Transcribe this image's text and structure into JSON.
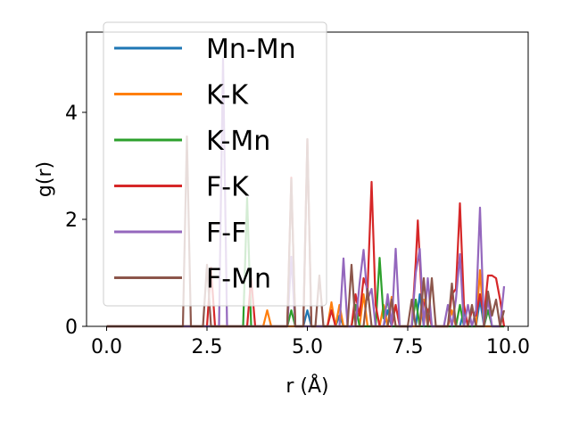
{
  "chart_data": {
    "type": "line",
    "xlabel": "r (Å)",
    "ylabel": "g(r)",
    "xlim": [
      -0.5,
      10.5
    ],
    "ylim": [
      0,
      5.5
    ],
    "xticks": [
      0.0,
      2.5,
      5.0,
      7.5,
      10.0
    ],
    "xtick_labels": [
      "0.0",
      "2.5",
      "5.0",
      "7.5",
      "10.0"
    ],
    "yticks": [
      0,
      2,
      4
    ],
    "ytick_labels": [
      "0",
      "2",
      "4"
    ],
    "grid": false,
    "legend_position": "upper-left",
    "series": [
      {
        "name": "Mn-Mn",
        "color": "#1f77b4",
        "points": [
          [
            0,
            0
          ],
          [
            4.9,
            0
          ],
          [
            5.0,
            0.3
          ],
          [
            5.1,
            0
          ],
          [
            5.7,
            0
          ],
          [
            5.8,
            0.2
          ],
          [
            5.9,
            0
          ],
          [
            6.9,
            0
          ],
          [
            7.0,
            0.3
          ],
          [
            7.1,
            0
          ],
          [
            7.7,
            0
          ],
          [
            7.8,
            0.6
          ],
          [
            7.9,
            0
          ],
          [
            8.8,
            0
          ],
          [
            8.9,
            0.3
          ],
          [
            9.0,
            0
          ],
          [
            9.2,
            0
          ],
          [
            9.3,
            0.5
          ],
          [
            9.4,
            0
          ],
          [
            9.9,
            0
          ]
        ]
      },
      {
        "name": "K-K",
        "color": "#ff7f0e",
        "points": [
          [
            0,
            0
          ],
          [
            3.9,
            0
          ],
          [
            4.0,
            0.3
          ],
          [
            4.1,
            0
          ],
          [
            5.5,
            0
          ],
          [
            5.6,
            0.45
          ],
          [
            5.7,
            0
          ],
          [
            5.8,
            0.4
          ],
          [
            5.9,
            0
          ],
          [
            6.3,
            0
          ],
          [
            6.4,
            0.6
          ],
          [
            6.5,
            0
          ],
          [
            6.8,
            0
          ],
          [
            6.9,
            0.4
          ],
          [
            7.0,
            0
          ],
          [
            7.1,
            0.55
          ],
          [
            7.2,
            0
          ],
          [
            7.8,
            0
          ],
          [
            7.9,
            0.5
          ],
          [
            8.0,
            0
          ],
          [
            8.5,
            0
          ],
          [
            8.6,
            0.3
          ],
          [
            8.7,
            0
          ],
          [
            9.2,
            0
          ],
          [
            9.3,
            1.05
          ],
          [
            9.4,
            0
          ],
          [
            9.9,
            0
          ]
        ]
      },
      {
        "name": "K-Mn",
        "color": "#2ca02c",
        "points": [
          [
            0,
            0
          ],
          [
            3.4,
            0
          ],
          [
            3.5,
            2.4
          ],
          [
            3.6,
            0
          ],
          [
            4.5,
            0
          ],
          [
            4.6,
            0.3
          ],
          [
            4.7,
            0
          ],
          [
            6.1,
            0
          ],
          [
            6.2,
            0.4
          ],
          [
            6.3,
            0
          ],
          [
            6.7,
            0
          ],
          [
            6.8,
            1.28
          ],
          [
            6.9,
            0.15
          ],
          [
            7.0,
            0.5
          ],
          [
            7.1,
            0
          ],
          [
            7.6,
            0
          ],
          [
            7.7,
            0.5
          ],
          [
            7.8,
            0
          ],
          [
            8.7,
            0
          ],
          [
            8.8,
            0.4
          ],
          [
            8.9,
            0
          ],
          [
            9.4,
            0
          ],
          [
            9.5,
            0.3
          ],
          [
            9.6,
            0
          ],
          [
            9.9,
            0
          ]
        ]
      },
      {
        "name": "F-K",
        "color": "#d62728",
        "points": [
          [
            0,
            0
          ],
          [
            2.5,
            0
          ],
          [
            2.6,
            1.1
          ],
          [
            2.7,
            0
          ],
          [
            3.5,
            0
          ],
          [
            3.6,
            0.9
          ],
          [
            3.7,
            0
          ],
          [
            4.5,
            0
          ],
          [
            4.6,
            2.78
          ],
          [
            4.7,
            0
          ],
          [
            4.9,
            0
          ],
          [
            5.0,
            3.5
          ],
          [
            5.1,
            0
          ],
          [
            5.5,
            0
          ],
          [
            5.6,
            0.3
          ],
          [
            5.7,
            0
          ],
          [
            6.1,
            0
          ],
          [
            6.2,
            0.6
          ],
          [
            6.3,
            0.2
          ],
          [
            6.4,
            0.9
          ],
          [
            6.5,
            0.7
          ],
          [
            6.6,
            2.7
          ],
          [
            6.7,
            0.4
          ],
          [
            6.8,
            0
          ],
          [
            7.1,
            0
          ],
          [
            7.2,
            0.4
          ],
          [
            7.3,
            0
          ],
          [
            7.6,
            0
          ],
          [
            7.7,
            1.2
          ],
          [
            7.75,
            1.98
          ],
          [
            7.85,
            0.5
          ],
          [
            8.0,
            0.3
          ],
          [
            8.1,
            0
          ],
          [
            8.5,
            0
          ],
          [
            8.6,
            0.6
          ],
          [
            8.7,
            0.7
          ],
          [
            8.8,
            2.3
          ],
          [
            8.9,
            0.4
          ],
          [
            9.0,
            0
          ],
          [
            9.1,
            0.3
          ],
          [
            9.2,
            0.2
          ],
          [
            9.3,
            0.6
          ],
          [
            9.4,
            0.2
          ],
          [
            9.5,
            0.95
          ],
          [
            9.6,
            0.95
          ],
          [
            9.7,
            0.9
          ],
          [
            9.8,
            0.5
          ],
          [
            9.9,
            0
          ]
        ]
      },
      {
        "name": "F-F",
        "color": "#9467bd",
        "points": [
          [
            0,
            0
          ],
          [
            2.8,
            0
          ],
          [
            2.9,
            5.0
          ],
          [
            3.0,
            0
          ],
          [
            4.5,
            0
          ],
          [
            4.6,
            1.3
          ],
          [
            4.7,
            0
          ],
          [
            5.8,
            0
          ],
          [
            5.9,
            1.27
          ],
          [
            6.0,
            0
          ],
          [
            6.2,
            0
          ],
          [
            6.3,
            0.8
          ],
          [
            6.4,
            1.43
          ],
          [
            6.5,
            0.5
          ],
          [
            6.6,
            0.7
          ],
          [
            6.7,
            0
          ],
          [
            6.9,
            0
          ],
          [
            7.0,
            0.6
          ],
          [
            7.1,
            0
          ],
          [
            7.2,
            1.45
          ],
          [
            7.3,
            0
          ],
          [
            7.6,
            0
          ],
          [
            7.7,
            1.0
          ],
          [
            7.8,
            1.45
          ],
          [
            7.9,
            0
          ],
          [
            8.0,
            0.9
          ],
          [
            8.1,
            0
          ],
          [
            8.4,
            0
          ],
          [
            8.5,
            0.4
          ],
          [
            8.6,
            0
          ],
          [
            8.7,
            0.5
          ],
          [
            8.8,
            1.35
          ],
          [
            8.9,
            0
          ],
          [
            9.0,
            0.4
          ],
          [
            9.1,
            0
          ],
          [
            9.2,
            0.3
          ],
          [
            9.3,
            2.22
          ],
          [
            9.4,
            0
          ],
          [
            9.5,
            0.5
          ],
          [
            9.6,
            0
          ],
          [
            9.8,
            0
          ],
          [
            9.9,
            0.75
          ]
        ]
      },
      {
        "name": "F-Mn",
        "color": "#8c564b",
        "points": [
          [
            0,
            0
          ],
          [
            1.9,
            0
          ],
          [
            2.0,
            3.55
          ],
          [
            2.1,
            0
          ],
          [
            2.4,
            0
          ],
          [
            2.5,
            1.15
          ],
          [
            2.6,
            0
          ],
          [
            4.5,
            0
          ],
          [
            4.6,
            2.75
          ],
          [
            4.7,
            0
          ],
          [
            4.9,
            0
          ],
          [
            5.0,
            3.5
          ],
          [
            5.1,
            0
          ],
          [
            5.2,
            0
          ],
          [
            5.3,
            0.95
          ],
          [
            5.4,
            0
          ],
          [
            6.0,
            0
          ],
          [
            6.1,
            1.15
          ],
          [
            6.2,
            0
          ],
          [
            6.4,
            0
          ],
          [
            6.5,
            0.7
          ],
          [
            6.6,
            0
          ],
          [
            7.0,
            0
          ],
          [
            7.1,
            0.5
          ],
          [
            7.2,
            0
          ],
          [
            7.5,
            0
          ],
          [
            7.6,
            0.5
          ],
          [
            7.7,
            0
          ],
          [
            7.8,
            0
          ],
          [
            7.9,
            0.9
          ],
          [
            8.0,
            0
          ],
          [
            8.1,
            0.9
          ],
          [
            8.2,
            0
          ],
          [
            8.5,
            0
          ],
          [
            8.6,
            0.8
          ],
          [
            8.7,
            0
          ],
          [
            9.0,
            0
          ],
          [
            9.1,
            0.4
          ],
          [
            9.2,
            0
          ],
          [
            9.4,
            0
          ],
          [
            9.5,
            0.65
          ],
          [
            9.6,
            0.2
          ],
          [
            9.7,
            0.5
          ],
          [
            9.8,
            0
          ],
          [
            9.9,
            0.3
          ]
        ]
      }
    ]
  }
}
